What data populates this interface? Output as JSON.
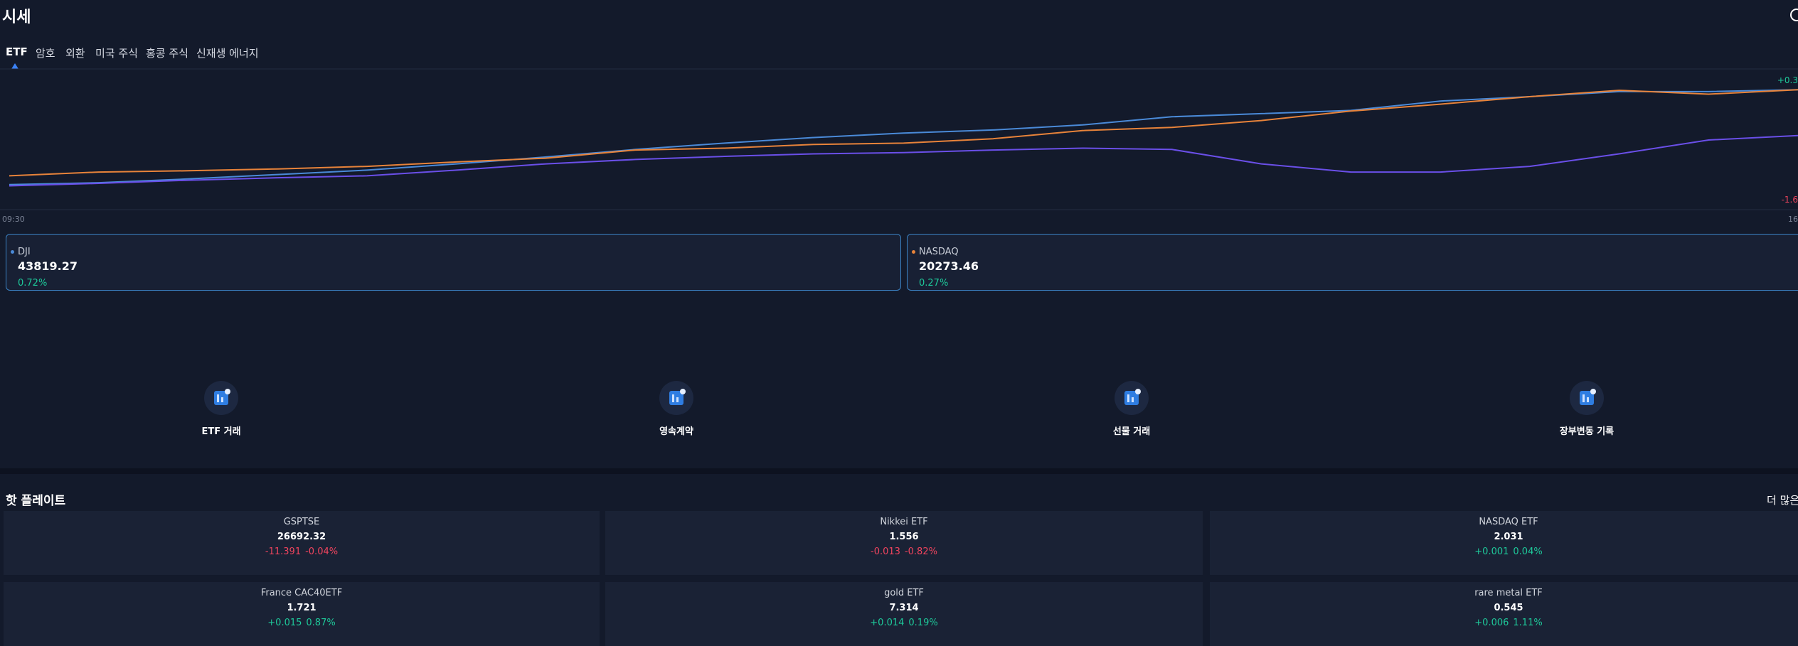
{
  "header": {
    "title": "시세"
  },
  "tabs": [
    "ETF",
    "암호",
    "외환",
    "미국 주식",
    "홍콩 주식",
    "신재생 에너지"
  ],
  "chart_data": {
    "type": "line",
    "xlabels": [
      "09:30",
      "16"
    ],
    "ylim": [
      -1.6,
      0.3
    ],
    "yticks": [
      {
        "value": 0.3,
        "label": "+0.3"
      },
      {
        "value": -1.6,
        "label": "-1.6"
      }
    ],
    "series": [
      {
        "color": "#4a8ad8",
        "values": [
          -1.36,
          -1.33,
          -1.27,
          -1.2,
          -1.13,
          -1.03,
          -0.92,
          -0.8,
          -0.7,
          -0.61,
          -0.54,
          -0.49,
          -0.41,
          -0.28,
          -0.23,
          -0.18,
          -0.03,
          0.04,
          0.12,
          0.12,
          0.15
        ]
      },
      {
        "color": "#e8833a",
        "values": [
          -1.22,
          -1.16,
          -1.14,
          -1.11,
          -1.07,
          -1.0,
          -0.94,
          -0.81,
          -0.78,
          -0.72,
          -0.7,
          -0.63,
          -0.5,
          -0.45,
          -0.34,
          -0.19,
          -0.08,
          0.04,
          0.14,
          0.08,
          0.15
        ]
      },
      {
        "color": "#6a4fe8",
        "values": [
          -1.38,
          -1.34,
          -1.29,
          -1.25,
          -1.22,
          -1.13,
          -1.03,
          -0.96,
          -0.91,
          -0.87,
          -0.85,
          -0.81,
          -0.78,
          -0.8,
          -1.03,
          -1.16,
          -1.16,
          -1.07,
          -0.87,
          -0.65,
          -0.58
        ]
      }
    ]
  },
  "indices": [
    {
      "name": "DJI",
      "value": "43819.27",
      "change": "0.72%",
      "color": "#4a8ad8"
    },
    {
      "name": "NASDAQ",
      "value": "20273.46",
      "change": "0.27%",
      "color": "#e8833a"
    }
  ],
  "actions": [
    "ETF 거래",
    "영속계약",
    "선물 거래",
    "장부변동 기록"
  ],
  "hot": {
    "title": "핫 플레이트",
    "more": "더 많은",
    "items": [
      {
        "name": "GSPTSE",
        "price": "26692.32",
        "change": "-11.391",
        "percent": "-0.04%",
        "up": false
      },
      {
        "name": "Nikkei ETF",
        "price": "1.556",
        "change": "-0.013",
        "percent": "-0.82%",
        "up": false
      },
      {
        "name": "NASDAQ ETF",
        "price": "2.031",
        "change": "+0.001",
        "percent": "0.04%",
        "up": true
      },
      {
        "name": "France CAC40ETF",
        "price": "1.721",
        "change": "+0.015",
        "percent": "0.87%",
        "up": true
      },
      {
        "name": "gold ETF",
        "price": "7.314",
        "change": "+0.014",
        "percent": "0.19%",
        "up": true
      },
      {
        "name": "rare metal ETF",
        "price": "0.545",
        "change": "+0.006",
        "percent": "1.11%",
        "up": true
      }
    ]
  }
}
